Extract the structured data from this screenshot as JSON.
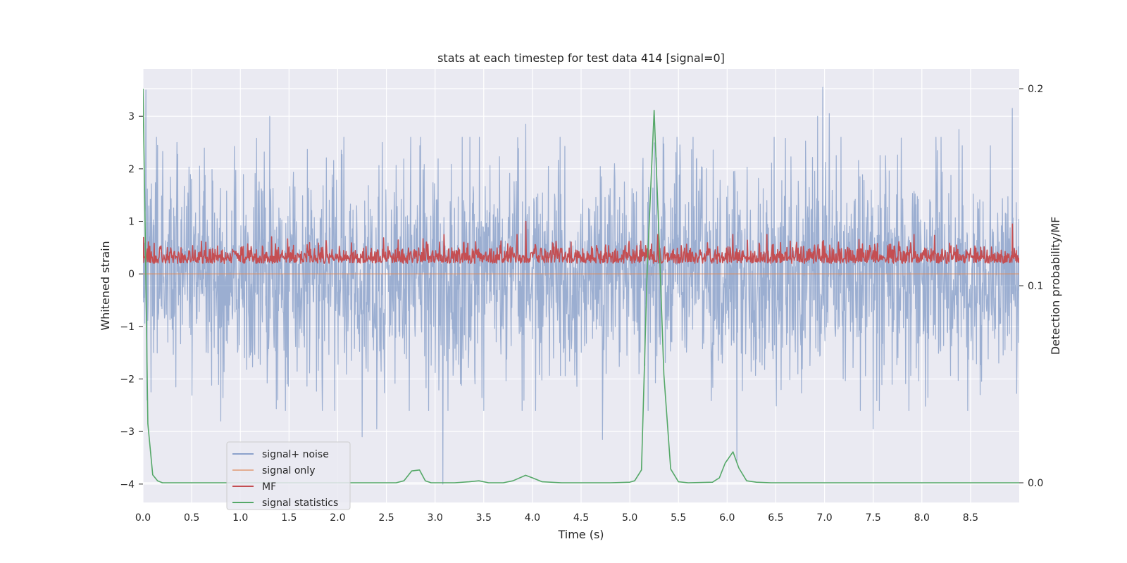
{
  "chart_data": {
    "type": "line",
    "title": "stats at each timestep for test data 414 [signal=0]",
    "xlabel": "Time (s)",
    "ylabel": "Whitened strain",
    "y2label": "Detection probability/MF",
    "xlim": [
      0.0,
      9.0
    ],
    "ylim": [
      -4.35,
      3.9
    ],
    "y2lim": [
      -0.01,
      0.21
    ],
    "x_ticks": [
      0.0,
      0.5,
      1.0,
      1.5,
      2.0,
      2.5,
      3.0,
      3.5,
      4.0,
      4.5,
      5.0,
      5.5,
      6.0,
      6.5,
      7.0,
      7.5,
      8.0,
      8.5
    ],
    "x_tick_labels": [
      "0.0",
      "0.5",
      "1.0",
      "1.5",
      "2.0",
      "2.5",
      "3.0",
      "3.5",
      "4.0",
      "4.5",
      "5.0",
      "5.5",
      "6.0",
      "6.5",
      "7.0",
      "7.5",
      "8.0",
      "8.5"
    ],
    "y_ticks": [
      3,
      2,
      1,
      0,
      -1,
      -2,
      -3,
      -4
    ],
    "y_tick_labels": [
      "3",
      "2",
      "1",
      "0",
      "−1",
      "−2",
      "−3",
      "−4"
    ],
    "y2_ticks": [
      0.2,
      0.1,
      0.0
    ],
    "y2_tick_labels": [
      "0.2",
      "0.1",
      "0.0"
    ],
    "grid": true,
    "legend_position": "lower-left",
    "series": [
      {
        "name": "signal+ noise",
        "color": "#4c72b0",
        "axis": "left",
        "style": "noise",
        "amplitude": 1.0,
        "x_range": [
          0.0,
          9.0
        ],
        "peaks": [
          {
            "x": 0.03,
            "y": 3.5
          },
          {
            "x": 0.35,
            "y": 2.5
          },
          {
            "x": 1.3,
            "y": 3.0
          },
          {
            "x": 2.75,
            "y": 2.6
          },
          {
            "x": 3.28,
            "y": 2.6
          },
          {
            "x": 3.93,
            "y": 2.85
          },
          {
            "x": 5.65,
            "y": 2.6
          },
          {
            "x": 6.93,
            "y": 3.0
          },
          {
            "x": 6.98,
            "y": 3.55
          },
          {
            "x": 7.05,
            "y": 3.05
          },
          {
            "x": 8.38,
            "y": 2.75
          },
          {
            "x": 8.93,
            "y": 3.15
          }
        ],
        "troughs": [
          {
            "x": 0.04,
            "y": -2.4
          },
          {
            "x": 0.8,
            "y": -2.8
          },
          {
            "x": 2.25,
            "y": -3.1
          },
          {
            "x": 2.4,
            "y": -2.95
          },
          {
            "x": 3.08,
            "y": -4.0
          },
          {
            "x": 4.72,
            "y": -3.15
          },
          {
            "x": 6.1,
            "y": -3.55
          },
          {
            "x": 7.5,
            "y": -2.95
          },
          {
            "x": 8.6,
            "y": -2.3
          }
        ]
      },
      {
        "name": "signal only",
        "color": "#dd8452",
        "axis": "left",
        "x": [
          0.0,
          9.0
        ],
        "y": [
          0.0,
          0.0
        ]
      },
      {
        "name": "MF",
        "color": "#c44e52",
        "axis": "left",
        "style": "mf",
        "baseline": 0.25,
        "x_range": [
          0.0,
          9.0
        ],
        "peaks": [
          {
            "x": 3.93,
            "y": 1.0
          },
          {
            "x": 8.93,
            "y": 0.95
          }
        ]
      },
      {
        "name": "signal statistics",
        "color": "#55a868",
        "axis": "right",
        "x": [
          0.0,
          0.025,
          0.05,
          0.1,
          0.15,
          0.2,
          0.3,
          0.5,
          1.0,
          2.0,
          2.6,
          2.68,
          2.76,
          2.84,
          2.9,
          2.96,
          3.05,
          3.2,
          3.35,
          3.45,
          3.55,
          3.7,
          3.8,
          3.93,
          4.0,
          4.1,
          4.3,
          4.6,
          4.8,
          5.0,
          5.05,
          5.12,
          5.18,
          5.25,
          5.3,
          5.35,
          5.42,
          5.5,
          5.6,
          5.85,
          5.92,
          5.98,
          6.06,
          6.12,
          6.2,
          6.3,
          6.45,
          7.0,
          8.0,
          9.0
        ],
        "y": [
          0.2,
          0.12,
          0.03,
          0.004,
          0.001,
          0.0,
          0.0,
          0.0,
          0.0,
          0.0,
          0.0,
          0.001,
          0.006,
          0.0065,
          0.001,
          0.0,
          0.0,
          0.0,
          0.0005,
          0.001,
          0.0,
          0.0,
          0.001,
          0.0038,
          0.0025,
          0.0005,
          0.0,
          0.0,
          0.0,
          0.0003,
          0.001,
          0.0065,
          0.11,
          0.189,
          0.125,
          0.055,
          0.007,
          0.0005,
          0.0,
          0.0003,
          0.0025,
          0.01,
          0.0157,
          0.0075,
          0.001,
          0.0003,
          0.0,
          0.0,
          0.0,
          0.0
        ]
      }
    ]
  }
}
